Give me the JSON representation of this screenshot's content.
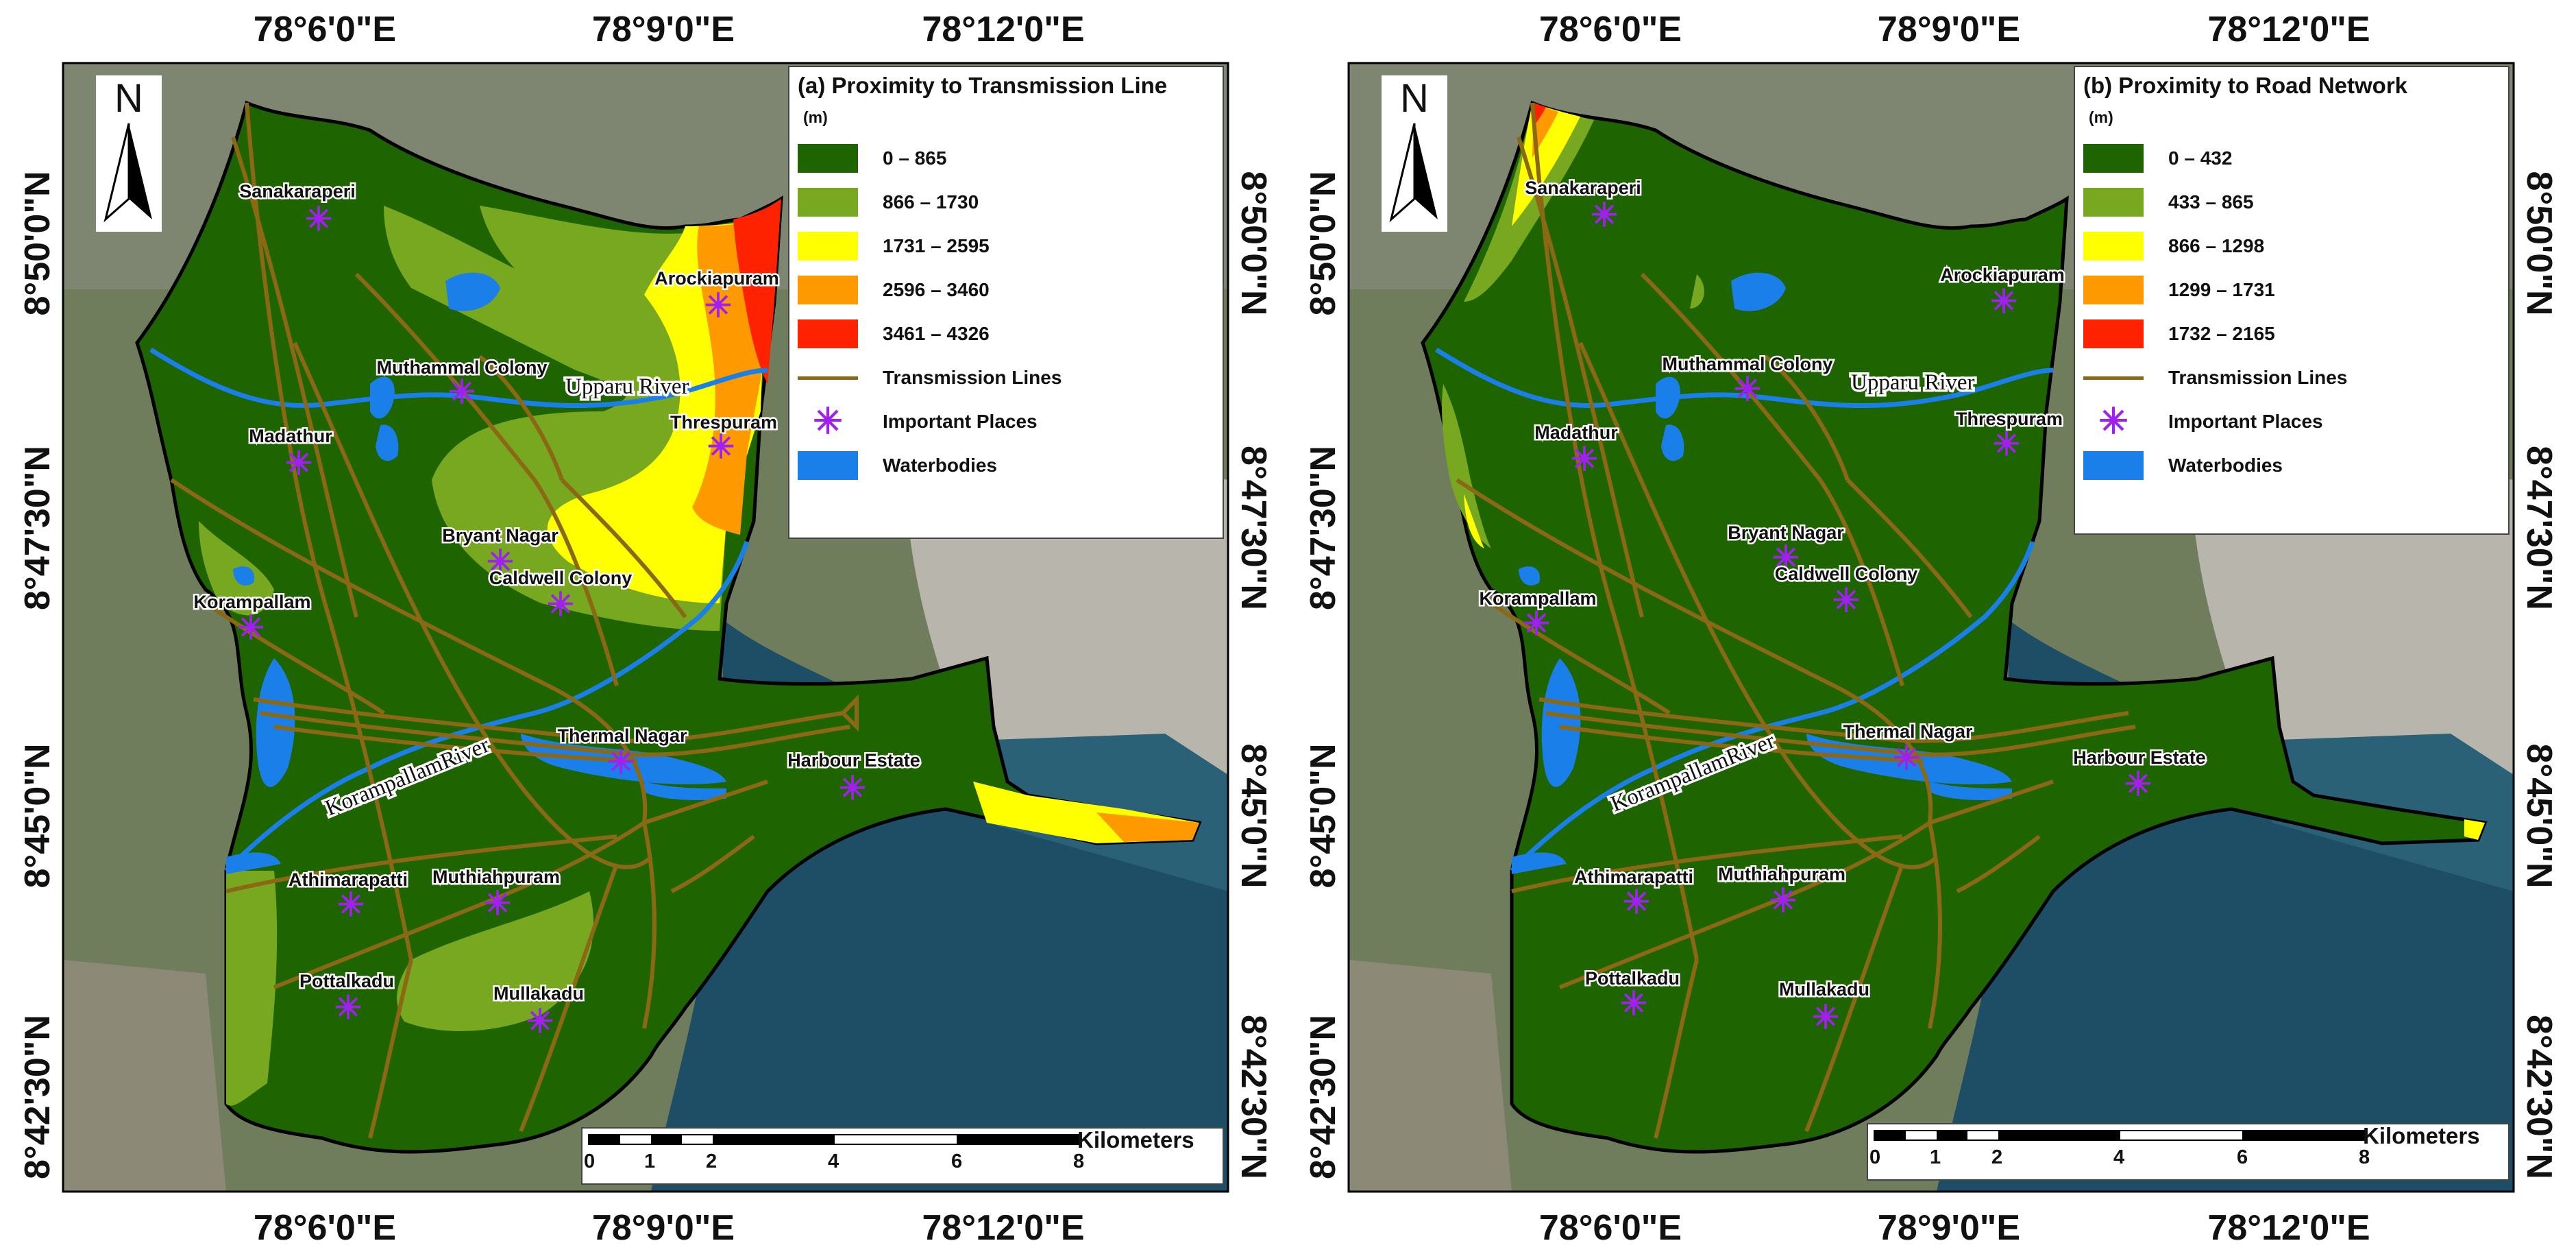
{
  "panels": [
    {
      "legend_title": "(a) Proximity to Transmission Line",
      "unit": "(m)",
      "classes": [
        {
          "label": "0 – 865",
          "color": "#1e6400"
        },
        {
          "label": "866 – 1730",
          "color": "#78a820"
        },
        {
          "label": "1731 – 2595",
          "color": "#ffff00"
        },
        {
          "label": "2596 – 3460",
          "color": "#ff9900"
        },
        {
          "label": "3461 – 4326",
          "color": "#ff2200"
        }
      ],
      "line_label": "Transmission Lines",
      "places_label": "Important Places",
      "water_label": "Waterbodies"
    },
    {
      "legend_title": "(b) Proximity to Road Network",
      "unit": "(m)",
      "classes": [
        {
          "label": "0 – 432",
          "color": "#1e6400"
        },
        {
          "label": "433 – 865",
          "color": "#78a820"
        },
        {
          "label": "866 – 1298",
          "color": "#ffff00"
        },
        {
          "label": "1299 – 1731",
          "color": "#ff9900"
        },
        {
          "label": "1732 – 2165",
          "color": "#ff2200"
        }
      ],
      "line_label": "Transmission Lines",
      "places_label": "Important Places",
      "water_label": "Waterbodies"
    }
  ],
  "colors": {
    "transmission_line": "#8b6914",
    "place_marker": "#a020f0",
    "waterbody": "#1a7fe8",
    "sea": "#1d4e66",
    "land_imagery": "#6f7d5c"
  },
  "north_arrow": {
    "label": "N",
    "icon": "north-arrow-icon"
  },
  "coords": {
    "top": [
      "78°6'0\"E",
      "78°9'0\"E",
      "78°12'0\"E"
    ],
    "bottom": [
      "78°6'0\"E",
      "78°9'0\"E",
      "78°12'0\"E"
    ],
    "left": [
      "8°50'0\"N",
      "8°47'30\"N",
      "8°45'0\"N",
      "8°42'30\"N"
    ],
    "right": [
      "8°50'0\"N",
      "8°47'30\"N",
      "8°45'0\"N",
      "8°42'30\"N"
    ]
  },
  "places": [
    "Sanakaraperi",
    "Arockiapuram",
    "Muthammal Colony",
    "Madathur",
    "Threspuram",
    "Bryant Nagar",
    "Caldwell Colony",
    "Korampallam",
    "Thermal Nagar",
    "Harbour Estate",
    "Athimarapatti",
    "Muthiahpuram",
    "Pottalkadu",
    "Mullakadu"
  ],
  "rivers": [
    "Upparu River",
    "KorampallamRiver"
  ],
  "scale_bar": {
    "unit": "Kilometers",
    "ticks": [
      "0",
      "1",
      "2",
      "4",
      "6",
      "8"
    ]
  }
}
